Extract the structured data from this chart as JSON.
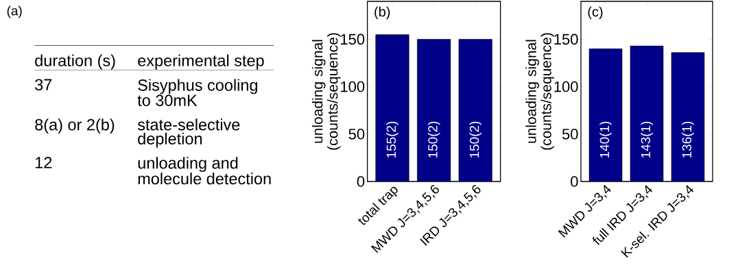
{
  "chart_data": [
    {
      "type": "other",
      "title": "(a)",
      "annotations": [
        "duration (s)",
        "experimental step",
        "37",
        "Sisyphus cooling to 30mK",
        "8(a) or 2(b)",
        "state-selective depletion",
        "12",
        "unloading and molecule detection"
      ]
    },
    {
      "type": "bar",
      "title": "(b)",
      "ylabel": "unloading signal (counts/sequence)",
      "categories": [
        "total trap",
        "MWD J=3,4,5,6",
        "IRD J=3,4,5,6"
      ],
      "values": [
        155,
        150,
        150
      ],
      "value_labels": [
        "155(2)",
        "150(2)",
        "150(2)"
      ],
      "color": "#000088",
      "ylim": [
        0,
        190
      ],
      "yticks": [
        0,
        50,
        100,
        150
      ]
    },
    {
      "type": "bar",
      "title": "(c)",
      "ylabel": "unloading signal (counts/sequence)",
      "categories": [
        "MWD J=3,4",
        "full IRD J=3,4",
        "K-sel. IRD J=3,4"
      ],
      "values": [
        140,
        143,
        136
      ],
      "value_labels": [
        "140(1)",
        "143(1)",
        "136(1)"
      ],
      "color": "#000088",
      "ylim": [
        0,
        190
      ],
      "yticks": [
        0,
        50,
        100,
        150
      ]
    }
  ]
}
